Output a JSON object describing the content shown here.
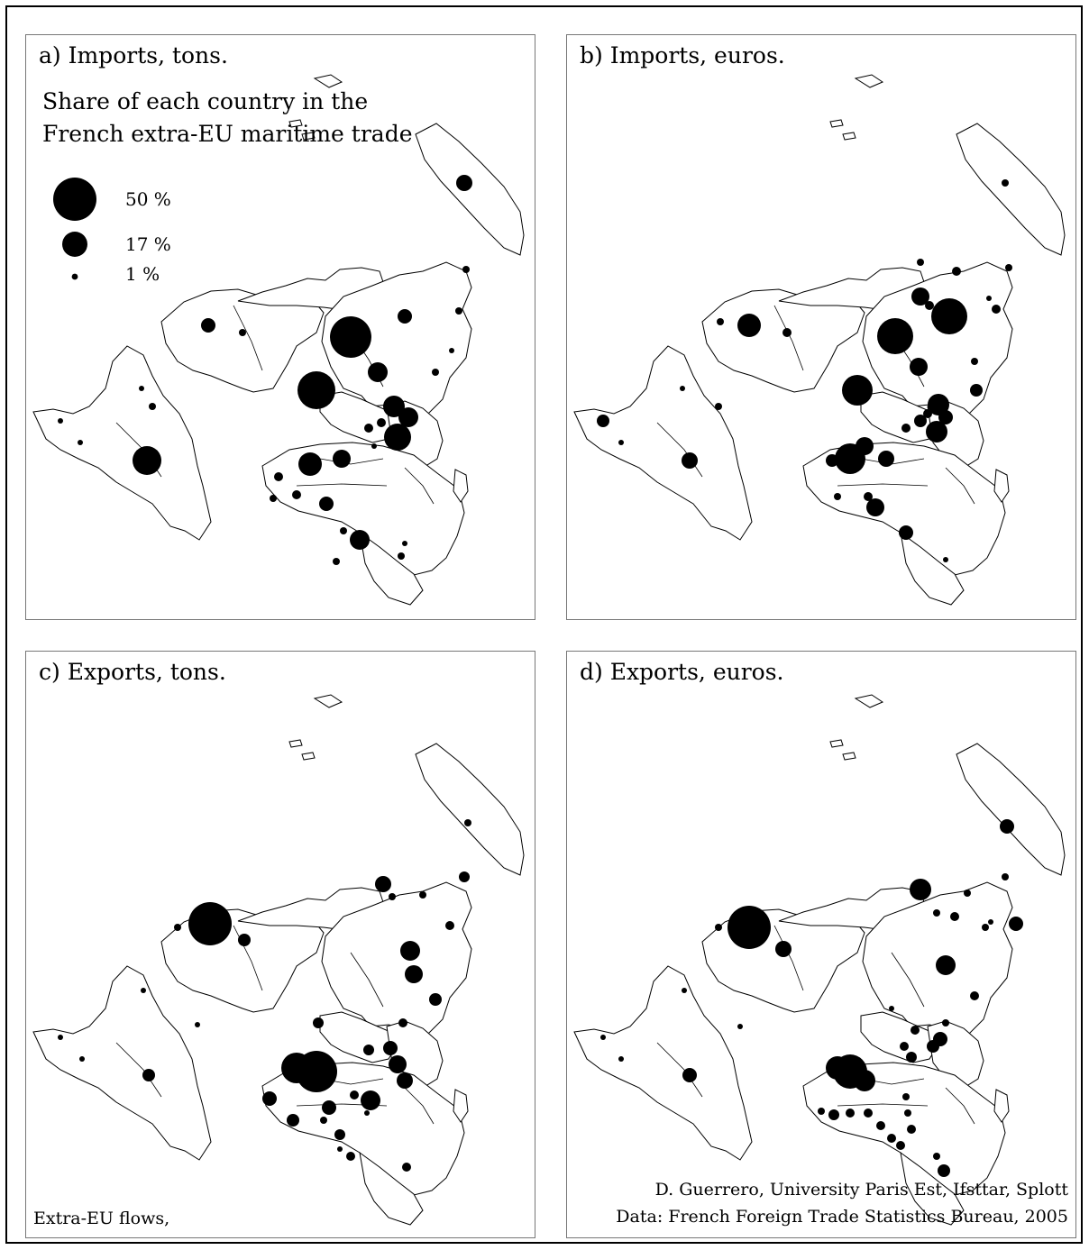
{
  "panels": {
    "a": {
      "title": "a) Imports, tons."
    },
    "b": {
      "title": "b) Imports, euros."
    },
    "c": {
      "title": "c) Exports, tons."
    },
    "d": {
      "title": "d) Exports, euros."
    }
  },
  "legend": {
    "title_line1": "Share of each country in the",
    "title_line2": "French extra-EU maritime trade",
    "items": [
      {
        "label": "50 %",
        "share": 50
      },
      {
        "label": "17 %",
        "share": 17
      },
      {
        "label": "1 %",
        "share": 1
      }
    ]
  },
  "footer": {
    "extra_eu_note": "Extra-EU flows,",
    "credit_line1": "D. Guerrero, University Paris Est, Ifsttar, Splott",
    "credit_line2": "Data: French Foreign Trade Statistics Bureau, 2005"
  },
  "colors": {
    "symbol": "#000000",
    "land_outline": "#000000",
    "land_fill": "#ffffff",
    "panel_border": "#777777"
  }
}
